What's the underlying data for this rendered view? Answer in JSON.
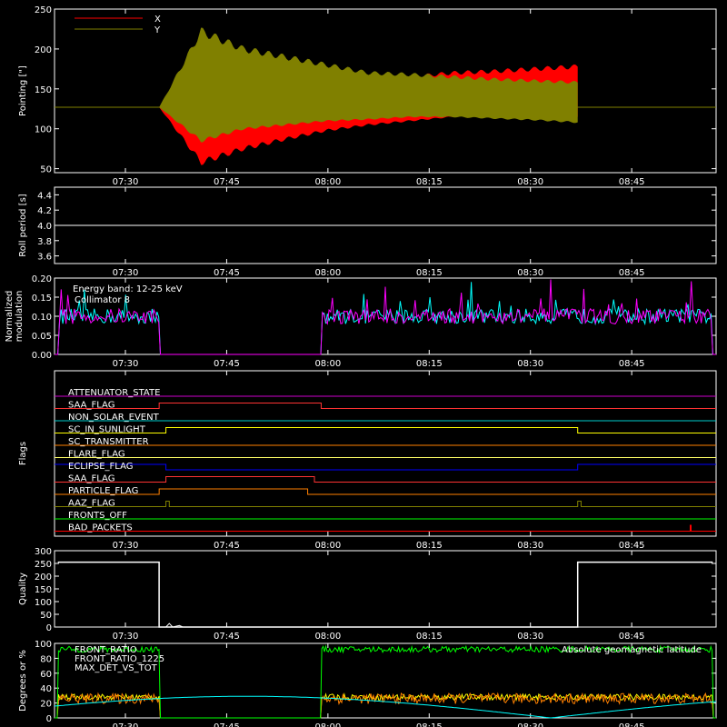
{
  "chart_data": [
    {
      "type": "area",
      "ylabel": "Pointing [\"]",
      "ylim": [
        45,
        250
      ],
      "yticks": [
        50,
        100,
        150,
        200,
        250
      ],
      "x_time_ticks": [
        "07:30",
        "07:45",
        "08:00",
        "08:15",
        "08:30",
        "08:45"
      ],
      "legend": [
        "X",
        "Y"
      ],
      "legend_position": "top-left",
      "series": [
        {
          "name": "X",
          "color": "#ff0000",
          "baseline": 127,
          "envelope": {
            "start": "07:35",
            "end": "08:37",
            "upper": [
              127,
              122,
              138,
              145,
              150,
              160,
              165,
              170,
              172,
              175,
              178
            ],
            "lower": [
              127,
              58,
              75,
              87,
              98,
              105,
              110,
              115,
              118,
              120,
              115
            ]
          }
        },
        {
          "name": "Y",
          "color": "#808000",
          "baseline": 127,
          "envelope": {
            "start": "07:35",
            "end": "08:37",
            "upper": [
              127,
              222,
              200,
              190,
              180,
              170,
              168,
              165,
              162,
              160,
              158
            ],
            "lower": [
              127,
              85,
              100,
              105,
              110,
              112,
              115,
              115,
              113,
              111,
              108
            ]
          }
        }
      ]
    },
    {
      "type": "line",
      "ylabel": "Roll period [s]",
      "ylim": [
        3.5,
        4.5
      ],
      "yticks": [
        3.6,
        3.8,
        4.0,
        4.2,
        4.4
      ],
      "x_time_ticks": [
        "07:30",
        "07:45",
        "08:00",
        "08:15",
        "08:30",
        "08:45"
      ],
      "series": [
        {
          "name": "",
          "color": "#ffffff",
          "constant": 4.0
        }
      ]
    },
    {
      "type": "line",
      "ylabel": "Normalized modulation",
      "ylim": [
        0,
        0.2
      ],
      "yticks": [
        0.0,
        0.05,
        0.1,
        0.15,
        0.2
      ],
      "x_time_ticks": [
        "07:30",
        "07:45",
        "08:00",
        "08:15",
        "08:30",
        "08:45"
      ],
      "annotations": [
        "Energy band: 12-25 keV",
        "Collimator 8"
      ],
      "series": [
        {
          "name": "Collimator 8",
          "color": "#00ffff",
          "mean": 0.1,
          "segments": [
            [
              "07:20",
              "07:35"
            ],
            [
              "07:59",
              "08:57"
            ]
          ],
          "gap_value": 0.0
        },
        {
          "name": "",
          "color": "#ff00ff",
          "mean": 0.1,
          "segments": [
            [
              "07:20",
              "07:35"
            ],
            [
              "07:59",
              "08:57"
            ]
          ],
          "gap_value": 0.0
        }
      ]
    },
    {
      "type": "line",
      "ylabel": "Flags",
      "x_time_ticks": [
        "07:30",
        "07:45",
        "08:00",
        "08:15",
        "08:30",
        "08:45"
      ],
      "flags": [
        {
          "name": "ATTENUATOR_STATE",
          "color": "#cc00cc",
          "transitions": []
        },
        {
          "name": "SAA_FLAG",
          "color": "#ff3333",
          "transitions": []
        },
        {
          "name": "NON_SOLAR_EVENT",
          "color": "#00cccc",
          "transitions": []
        },
        {
          "name": "SC_IN_SUNLIGHT",
          "color": "#ffff00",
          "transitions": []
        },
        {
          "name": "SC_TRANSMITTER",
          "color": "#ff8000",
          "transitions": []
        },
        {
          "name": "FLARE_FLAG",
          "color": "#ffff66",
          "transitions": []
        },
        {
          "name": "ECLIPSE_FLAG",
          "color": "#0000ff",
          "transitions": []
        },
        {
          "name": "SAA_FLAG",
          "color": "#ff3333",
          "transitions": []
        },
        {
          "name": "PARTICLE_FLAG",
          "color": "#ff8000",
          "transitions": []
        },
        {
          "name": "AAZ_FLAG",
          "color": "#808000",
          "transitions": []
        },
        {
          "name": "FRONTS_OFF",
          "color": "#00ff00",
          "transitions": []
        },
        {
          "name": "BAD_PACKETS",
          "color": "#ff0000",
          "transitions": []
        }
      ]
    },
    {
      "type": "line",
      "ylabel": "Quality",
      "ylim": [
        0,
        300
      ],
      "yticks": [
        0,
        50,
        100,
        150,
        200,
        250,
        300
      ],
      "x_time_ticks": [
        "07:30",
        "07:45",
        "08:00",
        "08:15",
        "08:30",
        "08:45"
      ],
      "series": [
        {
          "name": "",
          "color": "#ffffff",
          "points": [
            [
              "07:20",
              255
            ],
            [
              "07:35",
              255
            ],
            [
              "07:35",
              0
            ],
            [
              "08:37",
              0
            ],
            [
              "08:37",
              255
            ],
            [
              "08:57",
              255
            ]
          ]
        }
      ]
    },
    {
      "type": "line",
      "ylabel": "Degrees or %",
      "ylim": [
        0,
        100
      ],
      "yticks": [
        0,
        20,
        40,
        60,
        80,
        100
      ],
      "x_time_ticks": [
        "07:30",
        "07:45",
        "08:00",
        "08:15",
        "08:30",
        "08:45"
      ],
      "annotations": [
        "Absolute geomagnetic latitude"
      ],
      "legend": [
        "FRONT_RATIO",
        "FRONT_RATIO_1225",
        "MAX_DET_VS_TOT"
      ],
      "series": [
        {
          "name": "FRONT_RATIO",
          "color": "#00ff00",
          "mean": 92,
          "segments": [
            [
              "07:20",
              "07:35"
            ],
            [
              "07:59",
              "08:57"
            ]
          ]
        },
        {
          "name": "FRONT_RATIO_1225",
          "color": "#ffff00",
          "mean": 28,
          "segments": [
            [
              "07:20",
              "07:35"
            ],
            [
              "07:59",
              "08:57"
            ]
          ]
        },
        {
          "name": "MAX_DET_VS_TOT",
          "color": "#ff8000",
          "mean": 26,
          "segments": [
            [
              "07:20",
              "07:35"
            ],
            [
              "07:59",
              "08:57"
            ]
          ]
        },
        {
          "name": "Absolute geomagnetic latitude",
          "color": "#00ffff",
          "sine": {
            "min": 0,
            "max": 29,
            "period_min": 90,
            "peak": "07:48"
          }
        }
      ]
    }
  ]
}
